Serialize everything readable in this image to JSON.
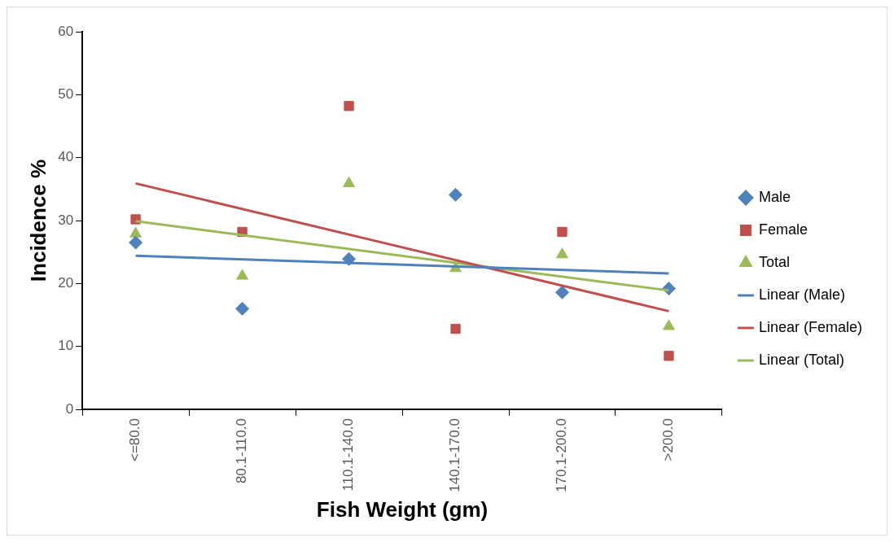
{
  "chart_data": {
    "type": "scatter",
    "xlabel": "Fish Weight (gm)",
    "ylabel": "Incidence %",
    "categories": [
      "<=80.0",
      "80.1-110.0",
      "110.1-140.0",
      "140.1-170.0",
      "170.1-200.0",
      ">200.0"
    ],
    "series": [
      {
        "name": "Male",
        "marker": "diamond",
        "color": "#4f81bd",
        "values": [
          26.5,
          16.0,
          23.9,
          34.1,
          18.6,
          19.2
        ]
      },
      {
        "name": "Female",
        "marker": "square",
        "color": "#c0504d",
        "values": [
          30.2,
          28.2,
          48.2,
          12.8,
          28.2,
          8.5
        ]
      },
      {
        "name": "Total",
        "marker": "triangle",
        "color": "#9bbb59",
        "values": [
          27.9,
          21.2,
          35.9,
          22.4,
          24.6,
          13.2
        ]
      },
      {
        "name": "Linear (Male)",
        "type": "line",
        "marker": "none",
        "line_style": "solid",
        "color": "#4f81bd",
        "x": [
          "<=80.0",
          ">200.0"
        ],
        "values": [
          24.4,
          21.6
        ]
      },
      {
        "name": "Linear (Female)",
        "type": "line",
        "marker": "none",
        "line_style": "solid",
        "color": "#c0504d",
        "x": [
          "<=80.0",
          ">200.0"
        ],
        "values": [
          35.9,
          15.6
        ]
      },
      {
        "name": "Linear (Total)",
        "type": "line",
        "marker": "none",
        "line_style": "solid",
        "color": "#9bbb59",
        "x": [
          "<=80.0",
          ">200.0"
        ],
        "values": [
          29.9,
          18.9
        ]
      }
    ],
    "ylim": [
      0,
      60
    ],
    "yticks": [
      0,
      10,
      20,
      30,
      40,
      50,
      60
    ],
    "grid": false,
    "legend": "right"
  }
}
